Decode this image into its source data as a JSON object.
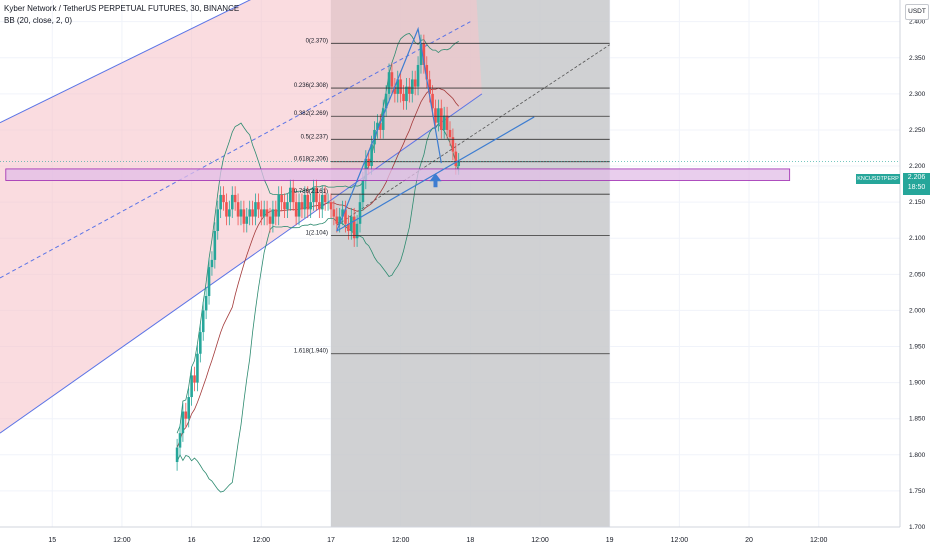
{
  "header": {
    "symbol_line": "Kyber Network / TetherUS PERPETUAL FUTURES, 30, BINANCE",
    "indicator_line": "BB (20, close, 2, 0)"
  },
  "price_axis": {
    "currency": "USDT",
    "ticks": [
      "2.400",
      "2.350",
      "2.300",
      "2.250",
      "2.200",
      "2.150",
      "2.100",
      "2.050",
      "2.000",
      "1.950",
      "1.900",
      "1.850",
      "1.800",
      "1.750",
      "1.700"
    ]
  },
  "time_axis": {
    "ticks": [
      "15",
      "12:00",
      "16",
      "12:00",
      "17",
      "12:00",
      "18",
      "12:00",
      "19",
      "12:00",
      "20",
      "12:00"
    ]
  },
  "ticker": {
    "symbol": "KNCUSDTPERP",
    "last_price": "2.206",
    "countdown": "18:50"
  },
  "colors": {
    "up": "#26a69a",
    "down": "#ef5350",
    "channel": "#5b74e6",
    "channel_fill": "#f6c4cb",
    "fib_zone": "#c8c9cb",
    "bands": "#2e8b70",
    "basis": "#a33a3a",
    "support_box": "#9c27b0",
    "arrow": "#3d7dd1"
  },
  "chart_data": {
    "type": "candlestick",
    "title": "Kyber Network / TetherUS PERPETUAL FUTURES, 30, BINANCE",
    "interval": "30",
    "y_range": [
      1.7,
      2.43
    ],
    "y_ticks": [
      2.4,
      2.35,
      2.3,
      2.25,
      2.2,
      2.15,
      2.1,
      2.05,
      2.0,
      1.95,
      1.9,
      1.85,
      1.8,
      1.75,
      1.7
    ],
    "x_range_hours": [
      -9,
      146
    ],
    "x_ticks": [
      {
        "label": "15",
        "h": 0
      },
      {
        "label": "12:00",
        "h": 12
      },
      {
        "label": "16",
        "h": 24
      },
      {
        "label": "12:00",
        "h": 36
      },
      {
        "label": "17",
        "h": 48
      },
      {
        "label": "12:00",
        "h": 60
      },
      {
        "label": "18",
        "h": 72
      },
      {
        "label": "12:00",
        "h": 84
      },
      {
        "label": "19",
        "h": 96
      },
      {
        "label": "12:00",
        "h": 108
      },
      {
        "label": "20",
        "h": 120
      },
      {
        "label": "12:00",
        "h": 132
      }
    ],
    "last_price": 2.206,
    "close_series": [
      1.81,
      1.83,
      1.86,
      1.85,
      1.88,
      1.91,
      1.9,
      1.94,
      1.97,
      2.0,
      2.02,
      2.06,
      2.07,
      2.11,
      2.14,
      2.16,
      2.15,
      2.13,
      2.14,
      2.16,
      2.15,
      2.13,
      2.14,
      2.12,
      2.13,
      2.14,
      2.13,
      2.15,
      2.14,
      2.13,
      2.14,
      2.13,
      2.12,
      2.14,
      2.13,
      2.16,
      2.15,
      2.14,
      2.15,
      2.17,
      2.15,
      2.13,
      2.15,
      2.14,
      2.16,
      2.14,
      2.15,
      2.17,
      2.15,
      2.14,
      2.16,
      2.15,
      2.15,
      2.14,
      2.13,
      2.12,
      2.13,
      2.14,
      2.12,
      2.11,
      2.13,
      2.1,
      2.12,
      2.15,
      2.18,
      2.21,
      2.2,
      2.23,
      2.25,
      2.26,
      2.25,
      2.28,
      2.3,
      2.33,
      2.31,
      2.3,
      2.32,
      2.3,
      2.29,
      2.31,
      2.3,
      2.32,
      2.31,
      2.34,
      2.37,
      2.34,
      2.32,
      2.3,
      2.28,
      2.26,
      2.28,
      2.25,
      2.27,
      2.25,
      2.24,
      2.22,
      2.2,
      2.206
    ],
    "fib_levels": [
      {
        "ratio": "0",
        "price": 2.37
      },
      {
        "ratio": "0.236",
        "price": 2.308
      },
      {
        "ratio": "0.382",
        "price": 2.269
      },
      {
        "ratio": "0.5",
        "price": 2.237
      },
      {
        "ratio": "0.618",
        "price": 2.206
      },
      {
        "ratio": "0.786",
        "price": 2.161
      },
      {
        "ratio": "1",
        "price": 2.104
      },
      {
        "ratio": "1.618",
        "price": 1.94
      }
    ],
    "fib_range_hours": [
      48,
      96
    ],
    "support_zone": {
      "y_range": [
        2.18,
        2.196
      ],
      "x_range_hours": [
        -8,
        127
      ]
    },
    "channel": {
      "upper": [
        [
          -9,
          2.26
        ],
        [
          72,
          2.58
        ]
      ],
      "middle": [
        [
          -9,
          2.045
        ],
        [
          72,
          2.4
        ]
      ],
      "lower": [
        [
          -9,
          1.83
        ],
        [
          74,
          2.3
        ]
      ]
    },
    "triangle": [
      [
        49,
        2.11
      ],
      [
        63,
        2.39
      ],
      [
        67,
        2.204
      ]
    ],
    "trend_line": [
      [
        49,
        2.11
      ],
      [
        83,
        2.268
      ]
    ],
    "arrow": {
      "h": 66,
      "price": 2.19
    },
    "grid": true
  }
}
